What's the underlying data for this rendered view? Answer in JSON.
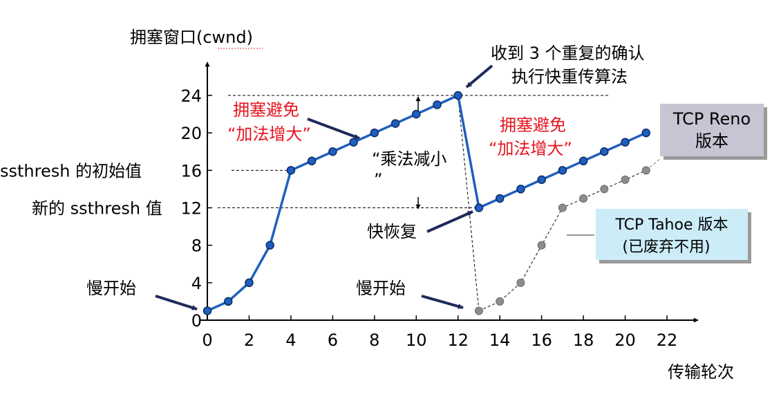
{
  "chart_data": {
    "type": "line",
    "ylabel": "拥塞窗口(cwnd)",
    "xlabel": "传输轮次",
    "xlim": [
      0,
      22
    ],
    "ylim": [
      0,
      24
    ],
    "x_ticks": [
      "0",
      "2",
      "4",
      "6",
      "8",
      "10",
      "12",
      "14",
      "16",
      "18",
      "20",
      "22"
    ],
    "y_ticks": [
      "0",
      "4",
      "8",
      "12",
      "16",
      "20",
      "24"
    ],
    "y_ref_labels": [
      "ssthresh 的初始值",
      "新的 ssthresh 值"
    ],
    "colors": {
      "reno": "#1f5fbf",
      "tahoe": "#808080",
      "red": "#e8141e",
      "arrow": "#1f2a5a"
    },
    "series": [
      {
        "name": "TCP Reno 版本",
        "x": [
          0,
          1,
          2,
          3,
          4,
          5,
          6,
          7,
          8,
          9,
          10,
          11,
          12,
          13,
          14,
          15,
          16,
          17,
          18,
          19,
          20,
          21
        ],
        "y": [
          1,
          2,
          4,
          8,
          16,
          17,
          18,
          19,
          20,
          21,
          22,
          23,
          24,
          12,
          13,
          14,
          15,
          16,
          17,
          18,
          19,
          20
        ]
      },
      {
        "name": "TCP Tahoe 版本",
        "x": [
          13,
          14,
          15,
          16,
          17,
          18,
          19,
          20,
          21
        ],
        "y": [
          1,
          2,
          4,
          8,
          12,
          13,
          14,
          15,
          16
        ]
      }
    ],
    "annotations": {
      "slow_start_1": "慢开始",
      "slow_start_2": "慢开始",
      "ca_1_line1": "拥塞避免",
      "ca_1_line2": "“加法增大”",
      "ca_2_line1": "拥塞避免",
      "ca_2_line2": "“加法增大”",
      "md_line1": "“乘法减小",
      "md_line2": "”",
      "fast_recovery": "快恢复",
      "triple_ack_line1": "收到 3 个重复的确认",
      "triple_ack_line2": "执行快重传算法",
      "reno_box_line1": "TCP Reno",
      "reno_box_line2": "版本",
      "tahoe_box_line1": "TCP Tahoe 版本",
      "tahoe_box_line2": "(已废弃不用)"
    }
  }
}
